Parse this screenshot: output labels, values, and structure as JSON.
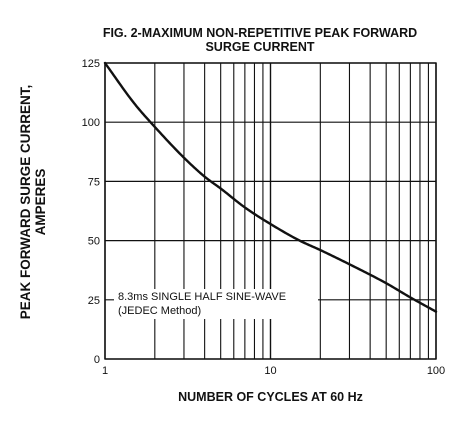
{
  "chart_data": {
    "type": "line",
    "title_line1": "FIG. 2-MAXIMUM NON-REPETITIVE PEAK FORWARD",
    "title_line2": "SURGE CURRENT",
    "ylabel_line1": "PEAK  FORWARD SURGE CURRENT,",
    "ylabel_line2": "AMPERES",
    "xlabel": "NUMBER OF CYCLES AT 60 Hz",
    "x_scale": "log",
    "xlim": [
      1,
      100
    ],
    "ylim": [
      0,
      125
    ],
    "x_ticks": [
      1,
      10,
      100
    ],
    "x_tick_labels": [
      "1",
      "10",
      "100"
    ],
    "y_ticks": [
      0,
      25,
      50,
      75,
      100,
      125
    ],
    "y_tick_labels": [
      "0",
      "25",
      "50",
      "75",
      "100",
      "125"
    ],
    "grid": true,
    "annotation_line1": "8.3ms SINGLE HALF SINE-WAVE",
    "annotation_line2": "(JEDEC Method)",
    "series": [
      {
        "x": [
          1,
          1.5,
          2,
          3,
          4,
          5,
          7,
          10,
          15,
          20,
          30,
          50,
          70,
          100
        ],
        "y": [
          125,
          108,
          98,
          85,
          77,
          72,
          64,
          57,
          50,
          46,
          40,
          32,
          26,
          20
        ]
      }
    ]
  }
}
